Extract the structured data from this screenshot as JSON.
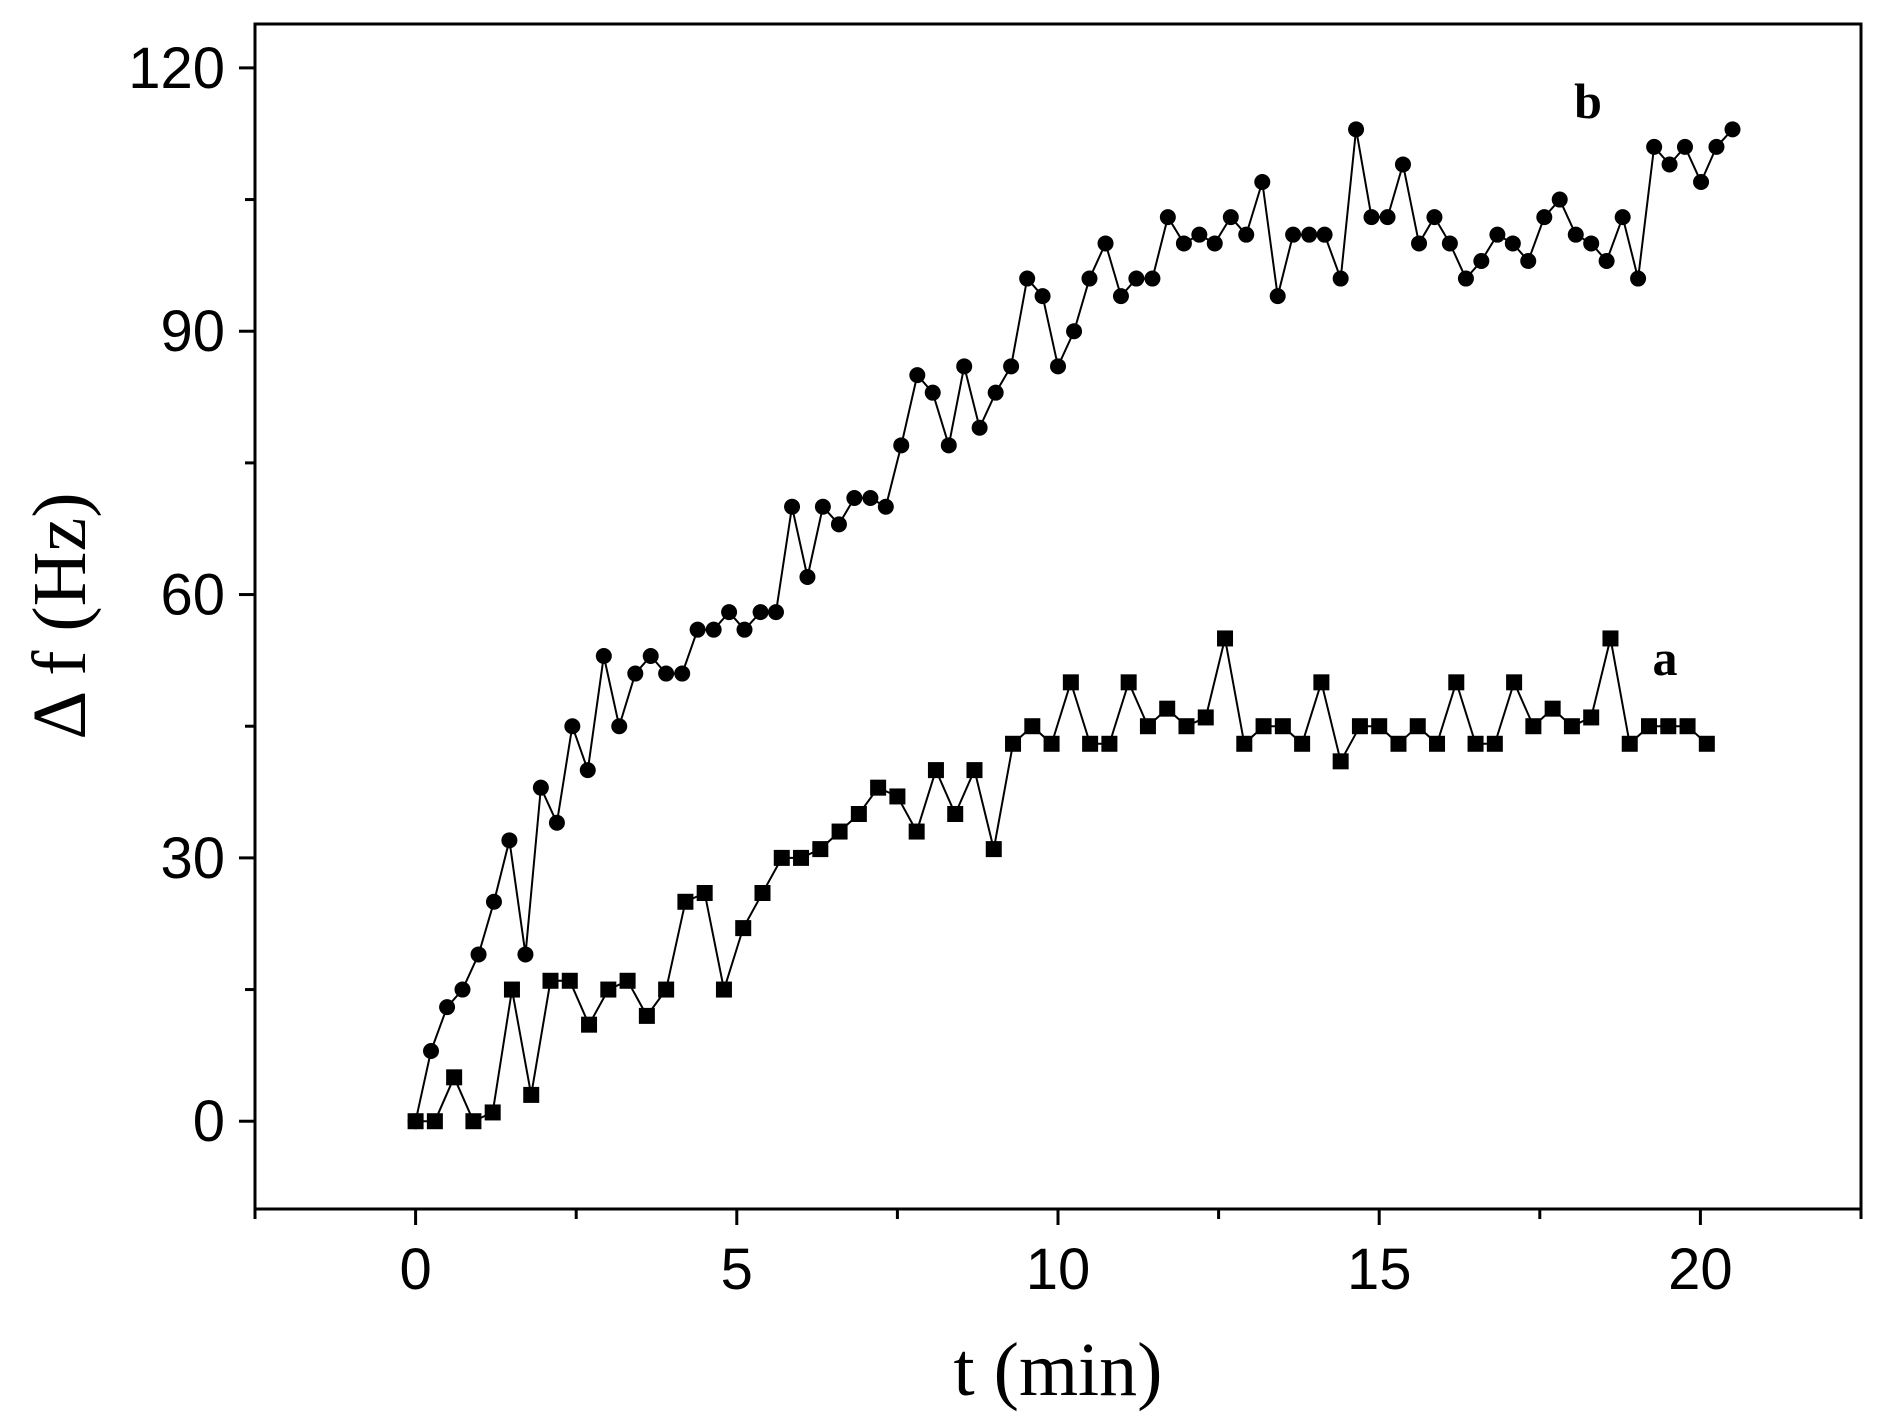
{
  "chart_data": {
    "type": "line",
    "xlabel": "t (min)",
    "ylabel": "Δ f (Hz)",
    "xlim": [
      -2.5,
      22.5
    ],
    "ylim": [
      -10,
      125
    ],
    "xticks": [
      0,
      5,
      10,
      15,
      20
    ],
    "yticks": [
      0,
      30,
      60,
      90,
      120
    ],
    "xminorticks": [
      -2.5,
      2.5,
      7.5,
      12.5,
      17.5,
      22.5
    ],
    "yminorticks": [
      15,
      45,
      75,
      105
    ],
    "series": [
      {
        "name": "a",
        "color": "#000000",
        "marker": "square",
        "x": [
          0,
          0.3,
          0.6,
          0.9,
          1.2,
          1.5,
          1.8,
          2.1,
          2.4,
          2.7,
          3,
          3.3,
          3.6,
          3.9,
          4.2,
          4.5,
          4.8,
          5.1,
          5.4,
          5.7,
          6,
          6.3,
          6.6,
          6.9,
          7.2,
          7.5,
          7.8,
          8.1,
          8.4,
          8.7,
          9,
          9.3,
          9.6,
          9.9,
          10.2,
          10.5,
          10.8,
          11.1,
          11.4,
          11.7,
          12,
          12.3,
          12.6,
          12.9,
          13.2,
          13.5,
          13.8,
          14.1,
          14.4,
          14.7,
          15,
          15.3,
          15.6,
          15.9,
          16.2,
          16.5,
          16.8,
          17.1,
          17.4,
          17.7,
          18,
          18.3,
          18.6,
          18.9,
          19.2,
          19.5,
          19.8,
          20.1
        ],
        "values": [
          0,
          0,
          5,
          0,
          1,
          15,
          3,
          16,
          16,
          11,
          15,
          16,
          12,
          15,
          25,
          26,
          15,
          22,
          26,
          30,
          30,
          31,
          33,
          35,
          38,
          37,
          33,
          40,
          35,
          40,
          31,
          43,
          45,
          43,
          50,
          43,
          43,
          50,
          45,
          47,
          45,
          46,
          55,
          43,
          45,
          45,
          43,
          50,
          41,
          45,
          45,
          43,
          45,
          43,
          50,
          43,
          43,
          50,
          45,
          47,
          45,
          46,
          55,
          43,
          45,
          45,
          45,
          43
        ]
      },
      {
        "name": "b",
        "color": "#000000",
        "marker": "circle",
        "x": [
          0,
          0.24,
          0.49,
          0.73,
          0.98,
          1.22,
          1.46,
          1.71,
          1.95,
          2.2,
          2.44,
          2.68,
          2.93,
          3.17,
          3.42,
          3.66,
          3.9,
          4.15,
          4.39,
          4.64,
          4.88,
          5.12,
          5.37,
          5.61,
          5.86,
          6.1,
          6.34,
          6.59,
          6.83,
          7.08,
          7.32,
          7.56,
          7.81,
          8.05,
          8.3,
          8.54,
          8.78,
          9.03,
          9.27,
          9.52,
          9.76,
          10,
          10.25,
          10.49,
          10.74,
          10.98,
          11.22,
          11.47,
          11.71,
          11.96,
          12.2,
          12.44,
          12.69,
          12.93,
          13.18,
          13.42,
          13.66,
          13.91,
          14.15,
          14.4,
          14.64,
          14.88,
          15.13,
          15.37,
          15.62,
          15.86,
          16.1,
          16.35,
          16.59,
          16.84,
          17.08,
          17.32,
          17.57,
          17.81,
          18.06,
          18.3,
          18.54,
          18.79,
          19.03,
          19.28,
          19.52,
          19.76,
          20.01,
          20.25,
          20.5
        ],
        "values": [
          0,
          8,
          13,
          15,
          19,
          25,
          32,
          19,
          38,
          34,
          45,
          40,
          53,
          45,
          51,
          53,
          51,
          51,
          56,
          56,
          58,
          56,
          58,
          58,
          70,
          62,
          70,
          68,
          71,
          71,
          70,
          77,
          85,
          83,
          77,
          86,
          79,
          83,
          86,
          96,
          94,
          86,
          90,
          96,
          100,
          94,
          96,
          96,
          103,
          100,
          101,
          100,
          103,
          101,
          107,
          94,
          101,
          101,
          101,
          96,
          113,
          103,
          103,
          109,
          100,
          103,
          100,
          96,
          98,
          101,
          100,
          98,
          103,
          105,
          101,
          100,
          98,
          103,
          96,
          111,
          109,
          111,
          107,
          111,
          113
        ]
      }
    ]
  }
}
